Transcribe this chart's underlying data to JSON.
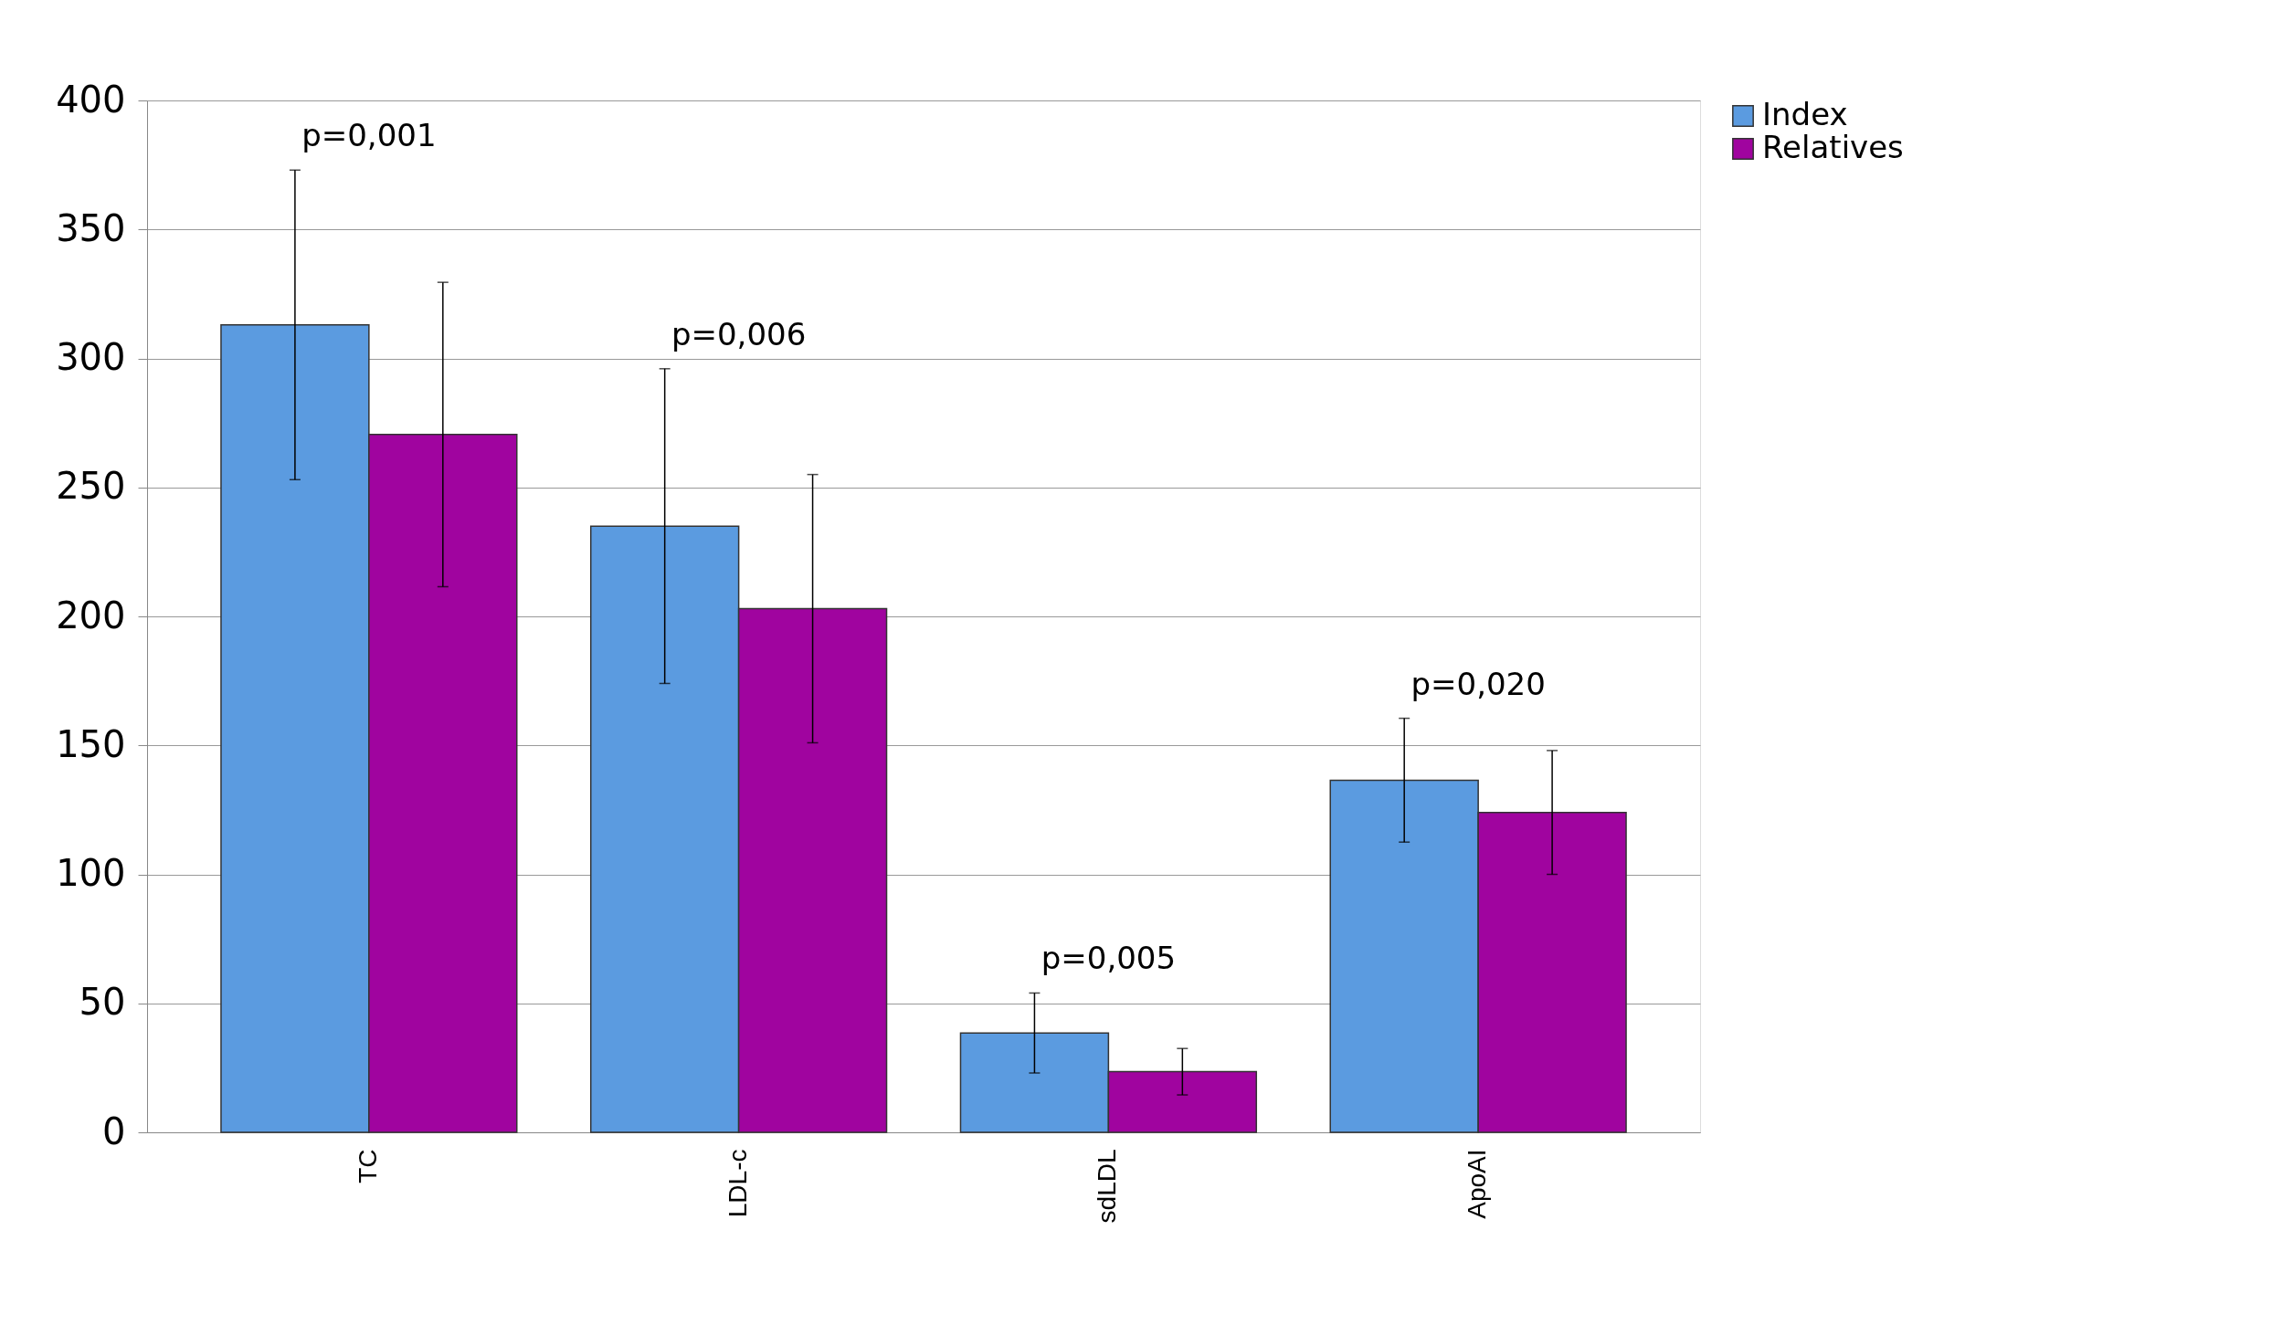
{
  "chart_data": {
    "type": "bar",
    "categories": [
      "TC",
      "LDL-c",
      "sdLDL",
      "ApoAI"
    ],
    "series": [
      {
        "name": "Index",
        "color": "#5b9be0",
        "values": [
          313,
          235,
          38.5,
          136.5
        ],
        "errors": [
          60,
          61,
          15.5,
          24
        ]
      },
      {
        "name": "Relatives",
        "color": "#a0049f",
        "values": [
          270.5,
          203,
          23.5,
          124
        ],
        "errors": [
          59,
          52,
          9,
          24
        ]
      }
    ],
    "annotations": [
      "p=0,001",
      "p=0,006",
      "p=0,005",
      "p=0,020"
    ],
    "ylim": [
      0,
      400
    ],
    "yticks": [
      0,
      50,
      100,
      150,
      200,
      250,
      300,
      350,
      400
    ],
    "grid": "y",
    "legend": "top right"
  }
}
